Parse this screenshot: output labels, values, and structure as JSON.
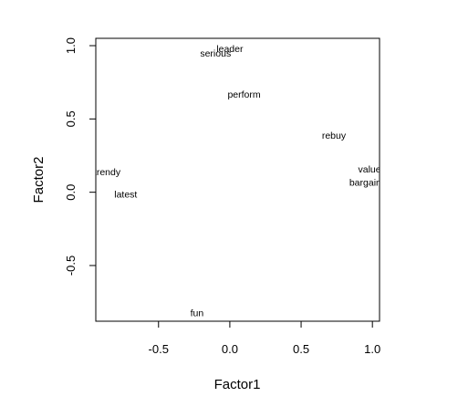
{
  "chart_data": {
    "type": "scatter",
    "xlabel": "Factor1",
    "ylabel": "Factor2",
    "xlim": [
      -0.94,
      1.05
    ],
    "ylim": [
      -0.88,
      1.05
    ],
    "x_ticks": [
      {
        "value": -0.5,
        "label": "-0.5"
      },
      {
        "value": 0.0,
        "label": "0.0"
      },
      {
        "value": 0.5,
        "label": "0.5"
      },
      {
        "value": 1.0,
        "label": "1.0"
      }
    ],
    "y_ticks": [
      {
        "value": -0.5,
        "label": "-0.5"
      },
      {
        "value": 0.0,
        "label": "0.0"
      },
      {
        "value": 0.5,
        "label": "0.5"
      },
      {
        "value": 1.0,
        "label": "1.0"
      }
    ],
    "points": [
      {
        "label": "leader",
        "x": 0.0,
        "y": 0.98
      },
      {
        "label": "serious",
        "x": -0.1,
        "y": 0.95
      },
      {
        "label": "perform",
        "x": 0.1,
        "y": 0.67
      },
      {
        "label": "rebuy",
        "x": 0.73,
        "y": 0.39
      },
      {
        "label": "value",
        "x": 0.98,
        "y": 0.16
      },
      {
        "label": "bargain",
        "x": 0.95,
        "y": 0.07
      },
      {
        "label": "trendy",
        "x": -0.86,
        "y": 0.14
      },
      {
        "label": "latest",
        "x": -0.73,
        "y": -0.01
      },
      {
        "label": "fun",
        "x": -0.23,
        "y": -0.82
      }
    ],
    "grid": false,
    "colors": {
      "text": "#000000",
      "frame": "#000000",
      "background": "#ffffff"
    }
  }
}
